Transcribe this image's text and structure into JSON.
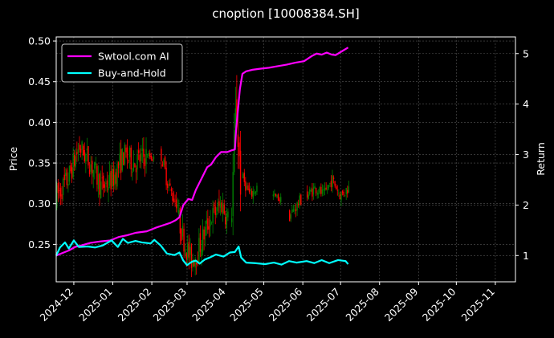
{
  "chart_data": {
    "type": "line",
    "title": "cnoption [10008384.SH]",
    "ylabel_left": "Price",
    "ylabel_right": "Return",
    "x_ticks": [
      "2024-12",
      "2025-01",
      "2025-02",
      "2025-03",
      "2025-04",
      "2025-05",
      "2025-06",
      "2025-07",
      "2025-08",
      "2025-09",
      "2025-10",
      "2025-11"
    ],
    "xlim": [
      "2024-11-17",
      "2025-11-17"
    ],
    "ylim_left": [
      0.204,
      0.505
    ],
    "ylim_right": [
      0.48,
      5.33
    ],
    "y_ticks_left": [
      0.25,
      0.3,
      0.35,
      0.4,
      0.45,
      0.5
    ],
    "y_ticks_right": [
      1,
      2,
      3,
      4,
      5
    ],
    "grid": true,
    "legend_position": "top-left",
    "series": [
      {
        "name": "Swtool.com AI",
        "color": "#ff00ff",
        "axis": "right",
        "points": [
          [
            "2024-11-17",
            1.0
          ],
          [
            "2024-11-22",
            1.05
          ],
          [
            "2024-11-27",
            1.1
          ],
          [
            "2024-12-02",
            1.17
          ],
          [
            "2024-12-07",
            1.2
          ],
          [
            "2024-12-14",
            1.25
          ],
          [
            "2024-12-22",
            1.28
          ],
          [
            "2024-12-30",
            1.3
          ],
          [
            "2025-01-06",
            1.37
          ],
          [
            "2025-01-12",
            1.4
          ],
          [
            "2025-01-19",
            1.45
          ],
          [
            "2025-01-28",
            1.48
          ],
          [
            "2025-02-04",
            1.55
          ],
          [
            "2025-02-10",
            1.6
          ],
          [
            "2025-02-16",
            1.65
          ],
          [
            "2025-02-20",
            1.7
          ],
          [
            "2025-02-23",
            1.76
          ],
          [
            "2025-02-26",
            2.0
          ],
          [
            "2025-03-02",
            2.12
          ],
          [
            "2025-03-05",
            2.1
          ],
          [
            "2025-03-08",
            2.3
          ],
          [
            "2025-03-12",
            2.5
          ],
          [
            "2025-03-17",
            2.75
          ],
          [
            "2025-03-20",
            2.8
          ],
          [
            "2025-03-24",
            2.95
          ],
          [
            "2025-03-28",
            3.05
          ],
          [
            "2025-04-02",
            3.05
          ],
          [
            "2025-04-05",
            3.08
          ],
          [
            "2025-04-08",
            3.1
          ],
          [
            "2025-04-09",
            3.5
          ],
          [
            "2025-04-12",
            4.3
          ],
          [
            "2025-04-14",
            4.6
          ],
          [
            "2025-04-17",
            4.65
          ],
          [
            "2025-04-22",
            4.68
          ],
          [
            "2025-04-28",
            4.7
          ],
          [
            "2025-05-05",
            4.72
          ],
          [
            "2025-05-12",
            4.75
          ],
          [
            "2025-05-19",
            4.78
          ],
          [
            "2025-05-26",
            4.82
          ],
          [
            "2025-06-02",
            4.85
          ],
          [
            "2025-06-08",
            4.95
          ],
          [
            "2025-06-12",
            5.0
          ],
          [
            "2025-06-16",
            4.98
          ],
          [
            "2025-06-20",
            5.02
          ],
          [
            "2025-06-24",
            4.98
          ],
          [
            "2025-06-27",
            4.97
          ],
          [
            "2025-07-01",
            5.03
          ],
          [
            "2025-07-07",
            5.12
          ]
        ]
      },
      {
        "name": "Buy-and-Hold",
        "color": "#00ffff",
        "axis": "right",
        "points": [
          [
            "2024-11-17",
            1.0
          ],
          [
            "2024-11-20",
            1.16
          ],
          [
            "2024-11-24",
            1.26
          ],
          [
            "2024-11-27",
            1.14
          ],
          [
            "2024-12-01",
            1.3
          ],
          [
            "2024-12-05",
            1.17
          ],
          [
            "2024-12-12",
            1.18
          ],
          [
            "2024-12-18",
            1.16
          ],
          [
            "2024-12-24",
            1.2
          ],
          [
            "2024-12-31",
            1.3
          ],
          [
            "2025-01-05",
            1.17
          ],
          [
            "2025-01-09",
            1.33
          ],
          [
            "2025-01-13",
            1.25
          ],
          [
            "2025-01-19",
            1.29
          ],
          [
            "2025-01-24",
            1.26
          ],
          [
            "2025-01-31",
            1.24
          ],
          [
            "2025-02-03",
            1.31
          ],
          [
            "2025-02-08",
            1.2
          ],
          [
            "2025-02-13",
            1.04
          ],
          [
            "2025-02-19",
            1.01
          ],
          [
            "2025-02-23",
            1.06
          ],
          [
            "2025-02-26",
            0.9
          ],
          [
            "2025-03-01",
            0.81
          ],
          [
            "2025-03-05",
            0.88
          ],
          [
            "2025-03-08",
            0.9
          ],
          [
            "2025-03-11",
            0.84
          ],
          [
            "2025-03-15",
            0.92
          ],
          [
            "2025-03-19",
            0.96
          ],
          [
            "2025-03-24",
            1.02
          ],
          [
            "2025-03-30",
            0.98
          ],
          [
            "2025-04-04",
            1.06
          ],
          [
            "2025-04-08",
            1.07
          ],
          [
            "2025-04-11",
            1.18
          ],
          [
            "2025-04-13",
            0.96
          ],
          [
            "2025-04-17",
            0.86
          ],
          [
            "2025-04-24",
            0.85
          ],
          [
            "2025-05-02",
            0.83
          ],
          [
            "2025-05-09",
            0.86
          ],
          [
            "2025-05-15",
            0.82
          ],
          [
            "2025-05-21",
            0.89
          ],
          [
            "2025-05-27",
            0.86
          ],
          [
            "2025-06-04",
            0.89
          ],
          [
            "2025-06-10",
            0.85
          ],
          [
            "2025-06-16",
            0.91
          ],
          [
            "2025-06-22",
            0.85
          ],
          [
            "2025-06-29",
            0.91
          ],
          [
            "2025-07-05",
            0.89
          ],
          [
            "2025-07-07",
            0.83
          ]
        ]
      },
      {
        "name": "Price",
        "type": "candlestick",
        "axis": "left",
        "colors": {
          "up": "#008000",
          "down": "#ff0000"
        },
        "segments": [
          {
            "start": "2024-11-17",
            "end": "2025-01-27",
            "trend": [
              0.31,
              0.33,
              0.37,
              0.35,
              0.32,
              0.33,
              0.36,
              0.35,
              0.36
            ],
            "spread": 0.03
          },
          {
            "start": "2025-01-28",
            "end": "2025-02-02",
            "trend": [
              0.36,
              0.355
            ],
            "spread": 0.01
          },
          {
            "start": "2025-02-08",
            "end": "2025-02-21",
            "trend": [
              0.36,
              0.33,
              0.31,
              0.3
            ],
            "spread": 0.02
          },
          {
            "start": "2025-02-22",
            "end": "2025-04-02",
            "trend": [
              0.28,
              0.25,
              0.23,
              0.24,
              0.26,
              0.28,
              0.29,
              0.3,
              0.28
            ],
            "spread": 0.03
          },
          {
            "start": "2025-04-05",
            "end": "2025-04-12",
            "trend": [
              0.3,
              0.42,
              0.33
            ],
            "spread": 0.06
          },
          {
            "start": "2025-04-14",
            "end": "2025-04-25",
            "trend": [
              0.33,
              0.31,
              0.32
            ],
            "spread": 0.015
          },
          {
            "start": "2025-05-08",
            "end": "2025-05-14",
            "trend": [
              0.31,
              0.305
            ],
            "spread": 0.01
          },
          {
            "start": "2025-05-21",
            "end": "2025-05-30",
            "trend": [
              0.285,
              0.305
            ],
            "spread": 0.015
          },
          {
            "start": "2025-06-04",
            "end": "2025-07-07",
            "trend": [
              0.31,
              0.32,
              0.31,
              0.33,
              0.31,
              0.32
            ],
            "spread": 0.015
          }
        ]
      }
    ]
  }
}
